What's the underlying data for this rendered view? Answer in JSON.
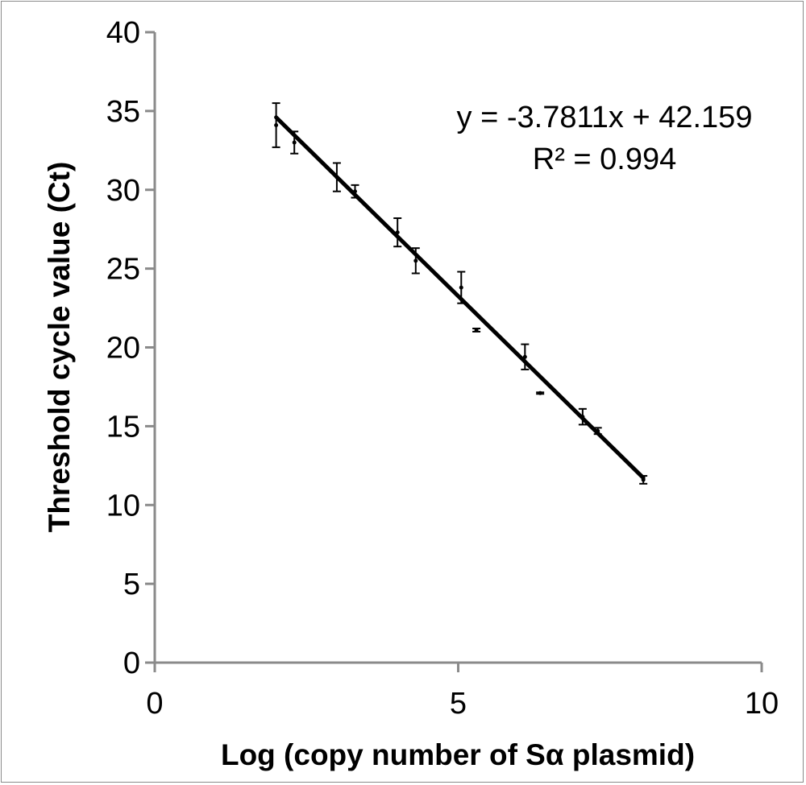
{
  "chart_data": {
    "type": "scatter",
    "title": "",
    "xlabel": "Log (copy number of Sα plasmid)",
    "ylabel": "Threshold cycle value (Ct)",
    "xlim": [
      0,
      10
    ],
    "ylim": [
      0,
      40
    ],
    "x_ticks": [
      0,
      5,
      10
    ],
    "y_ticks": [
      0,
      5,
      10,
      15,
      20,
      25,
      30,
      35,
      40
    ],
    "grid": false,
    "legend": "none",
    "colors": {
      "axis": "#8a8a8a",
      "series": "#000000"
    },
    "points": [
      {
        "x": 2.0,
        "y": 34.1,
        "err": 1.4
      },
      {
        "x": 2.3,
        "y": 33.0,
        "err": 0.7
      },
      {
        "x": 3.0,
        "y": 30.8,
        "err": 0.9
      },
      {
        "x": 3.3,
        "y": 29.9,
        "err": 0.4
      },
      {
        "x": 4.0,
        "y": 27.3,
        "err": 0.9
      },
      {
        "x": 4.3,
        "y": 25.5,
        "err": 0.8
      },
      {
        "x": 5.05,
        "y": 23.8,
        "err": 1.0
      },
      {
        "x": 5.3,
        "y": 21.1,
        "err": 0.1
      },
      {
        "x": 6.1,
        "y": 19.4,
        "err": 0.8
      },
      {
        "x": 6.35,
        "y": 17.1,
        "err": 0.05
      },
      {
        "x": 7.05,
        "y": 15.6,
        "err": 0.5
      },
      {
        "x": 7.3,
        "y": 14.7,
        "err": 0.2
      },
      {
        "x": 8.05,
        "y": 11.6,
        "err": 0.25
      }
    ],
    "trendline": {
      "slope": -3.7811,
      "intercept": 42.159,
      "x_range": [
        2.0,
        8.05
      ],
      "equation": "y = -3.7811x + 42.159",
      "r_squared": "R² = 0.994"
    }
  }
}
